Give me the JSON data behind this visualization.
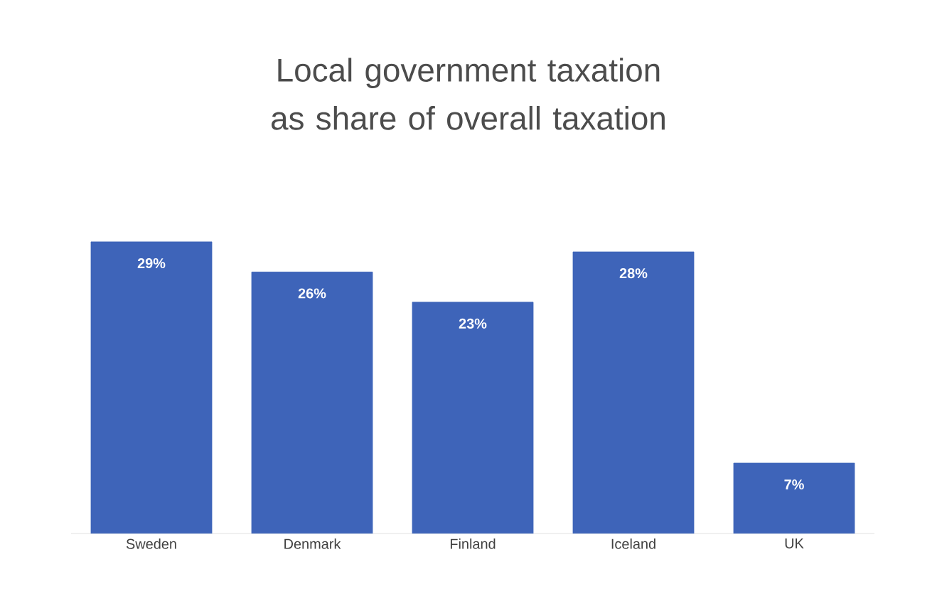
{
  "chart_data": {
    "type": "bar",
    "title": "Local government taxation as share of overall taxation",
    "categories": [
      "Sweden",
      "Denmark",
      "Finland",
      "Iceland",
      "UK"
    ],
    "values": [
      29,
      26,
      23,
      28,
      7
    ],
    "value_labels": [
      "29%",
      "26%",
      "23%",
      "28%",
      "7%"
    ],
    "color": "#3e64b9"
  }
}
